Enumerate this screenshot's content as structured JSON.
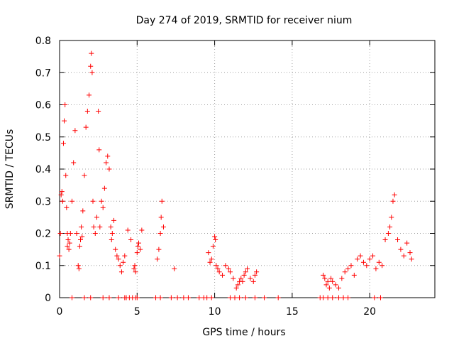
{
  "chart_data": {
    "type": "scatter",
    "title": "Day 274 of 2019, SRMTID for receiver nium",
    "xlabel": "GPS time / hours",
    "ylabel": "SRMTID / TECUs",
    "xlim": [
      0,
      24.2
    ],
    "ylim": [
      0,
      0.8
    ],
    "xticks": [
      0,
      5,
      10,
      15,
      20
    ],
    "xtick_labels": [
      "0",
      "5",
      "10",
      "15",
      "20"
    ],
    "yticks": [
      0,
      0.1,
      0.2,
      0.3,
      0.4,
      0.5,
      0.6,
      0.7,
      0.8
    ],
    "ytick_labels": [
      "0",
      "0.1",
      "0.2",
      "0.3",
      "0.4",
      "0.5",
      "0.6",
      "0.7",
      "0.8"
    ],
    "grid": true,
    "marker": "plus",
    "color": "#ff0000",
    "series": [
      {
        "name": "SRMTID",
        "x": [
          0.0,
          0.05,
          0.1,
          0.15,
          0.2,
          0.25,
          0.3,
          0.35,
          0.4,
          0.45,
          0.5,
          0.5,
          0.55,
          0.6,
          0.65,
          0.7,
          0.8,
          0.9,
          1.0,
          1.1,
          1.2,
          1.25,
          1.3,
          1.35,
          1.4,
          1.45,
          1.5,
          1.6,
          1.7,
          1.8,
          1.9,
          2.0,
          2.05,
          2.1,
          2.15,
          2.2,
          2.3,
          2.4,
          2.5,
          2.55,
          2.6,
          2.7,
          2.8,
          2.9,
          3.0,
          3.1,
          3.2,
          3.3,
          3.35,
          3.4,
          3.5,
          3.6,
          3.7,
          3.8,
          3.9,
          4.0,
          4.1,
          4.2,
          4.4,
          4.6,
          4.8,
          4.85,
          4.9,
          5.0,
          5.05,
          5.1,
          5.2,
          5.3,
          6.3,
          6.4,
          6.5,
          6.55,
          6.6,
          6.7,
          7.4,
          9.6,
          9.7,
          9.8,
          9.9,
          10.0,
          10.05,
          10.1,
          10.2,
          10.3,
          10.5,
          10.7,
          10.9,
          11.0,
          11.2,
          11.4,
          11.5,
          11.6,
          11.7,
          11.8,
          11.9,
          12.0,
          12.1,
          12.3,
          12.5,
          12.6,
          12.7,
          17.0,
          17.1,
          17.2,
          17.3,
          17.4,
          17.5,
          17.6,
          17.8,
          18.0,
          18.2,
          18.4,
          18.6,
          18.8,
          19.0,
          19.2,
          19.4,
          19.6,
          19.8,
          20.0,
          20.2,
          20.4,
          20.6,
          20.8,
          21.0,
          21.2,
          21.3,
          21.4,
          21.5,
          21.6,
          21.8,
          22.0,
          22.2,
          22.4,
          22.6,
          22.7,
          0.8,
          1.6,
          2.0,
          2.8,
          3.2,
          3.8,
          4.2,
          4.3,
          4.5,
          4.7,
          4.9,
          5.0,
          6.2,
          6.5,
          7.2,
          7.6,
          8.0,
          8.3,
          9.0,
          9.3,
          9.5,
          9.8,
          11.0,
          11.3,
          11.6,
          12.0,
          12.6,
          13.2,
          14.1,
          16.8,
          17.0,
          17.3,
          17.6,
          18.0,
          18.3,
          18.6,
          20.3,
          20.7
        ],
        "y": [
          0.13,
          0.2,
          0.32,
          0.33,
          0.3,
          0.48,
          0.55,
          0.6,
          0.38,
          0.28,
          0.2,
          0.16,
          0.18,
          0.15,
          0.17,
          0.2,
          0.3,
          0.42,
          0.52,
          0.2,
          0.1,
          0.09,
          0.16,
          0.18,
          0.22,
          0.19,
          0.27,
          0.38,
          0.53,
          0.58,
          0.63,
          0.72,
          0.76,
          0.7,
          0.3,
          0.22,
          0.2,
          0.25,
          0.58,
          0.46,
          0.22,
          0.3,
          0.28,
          0.34,
          0.42,
          0.44,
          0.4,
          0.22,
          0.18,
          0.2,
          0.24,
          0.15,
          0.13,
          0.12,
          0.1,
          0.08,
          0.11,
          0.13,
          0.21,
          0.18,
          0.09,
          0.1,
          0.08,
          0.14,
          0.16,
          0.17,
          0.15,
          0.21,
          0.12,
          0.15,
          0.2,
          0.25,
          0.3,
          0.22,
          0.09,
          0.14,
          0.11,
          0.12,
          0.16,
          0.19,
          0.18,
          0.1,
          0.09,
          0.08,
          0.07,
          0.1,
          0.09,
          0.08,
          0.06,
          0.03,
          0.04,
          0.05,
          0.06,
          0.05,
          0.07,
          0.08,
          0.09,
          0.06,
          0.05,
          0.07,
          0.08,
          0.07,
          0.06,
          0.04,
          0.05,
          0.03,
          0.06,
          0.05,
          0.04,
          0.03,
          0.06,
          0.08,
          0.09,
          0.1,
          0.07,
          0.12,
          0.13,
          0.11,
          0.1,
          0.12,
          0.13,
          0.09,
          0.11,
          0.1,
          0.18,
          0.2,
          0.22,
          0.25,
          0.3,
          0.32,
          0.18,
          0.15,
          0.13,
          0.17,
          0.14,
          0.12,
          0.0,
          0.0,
          0.0,
          0.0,
          0.0,
          0.0,
          0.0,
          0.0,
          0.0,
          0.0,
          0.0,
          0.0,
          0.0,
          0.0,
          0.0,
          0.0,
          0.0,
          0.0,
          0.0,
          0.0,
          0.0,
          0.0,
          0.0,
          0.0,
          0.0,
          0.0,
          0.0,
          0.0,
          0.0,
          0.0,
          0.0,
          0.0,
          0.0,
          0.0,
          0.0,
          0.0,
          0.0,
          0.0
        ]
      }
    ]
  }
}
